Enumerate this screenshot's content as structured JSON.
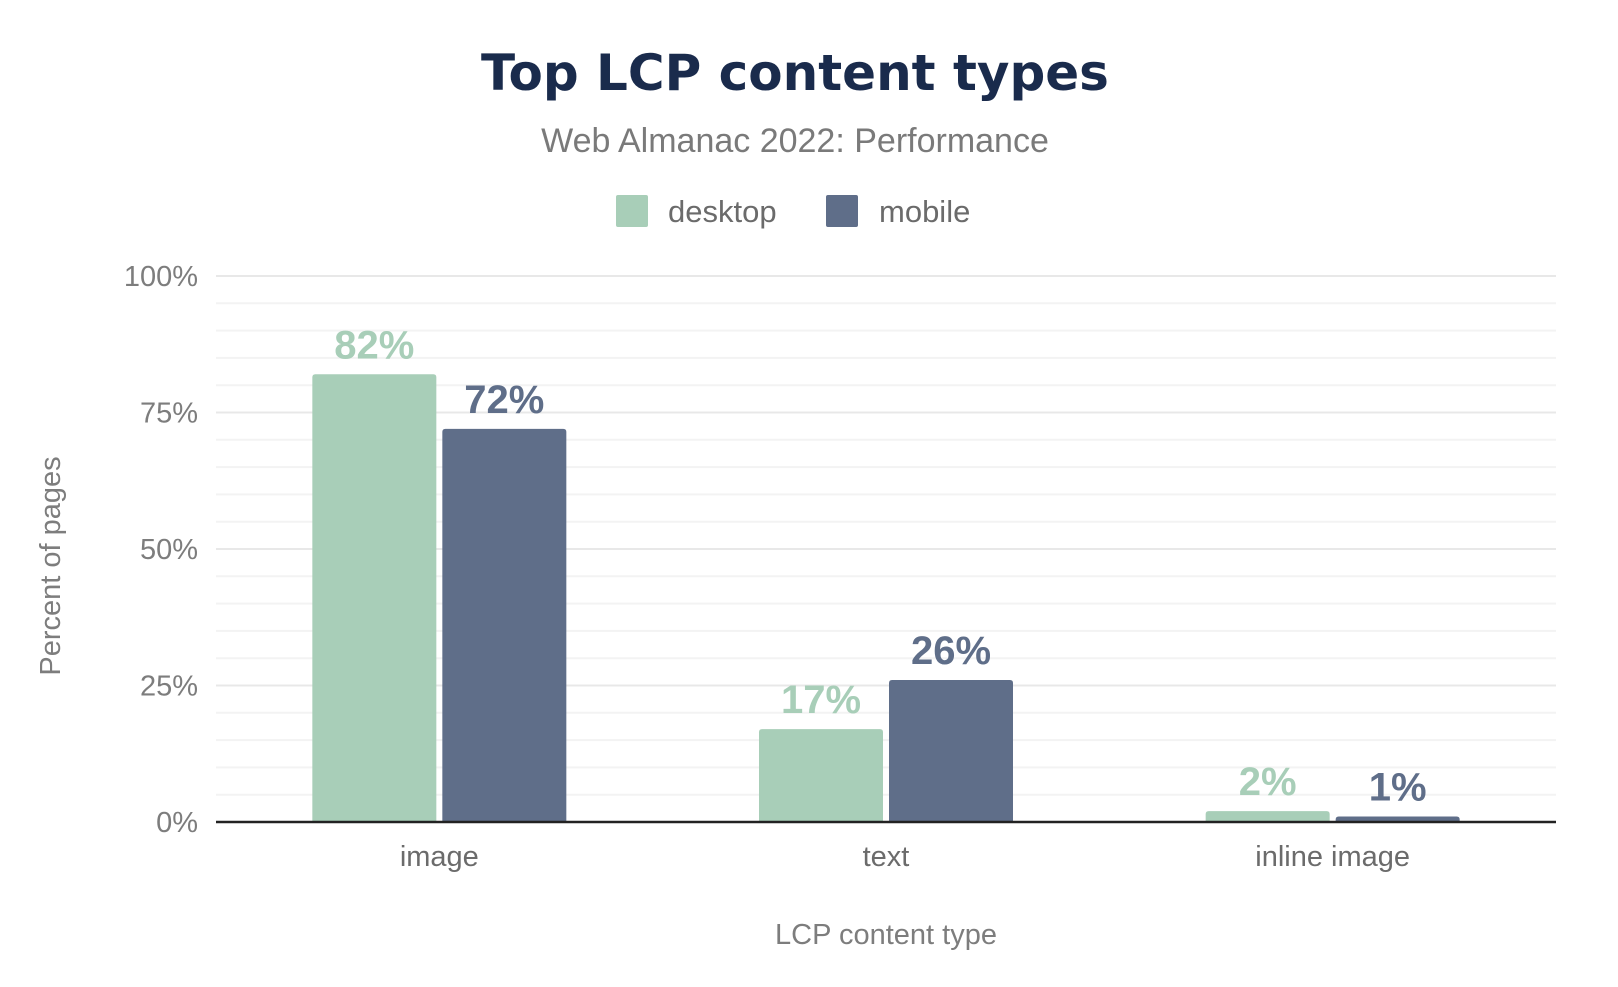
{
  "chart_data": {
    "type": "bar",
    "title": "Top LCP content types",
    "subtitle": "Web Almanac 2022: Performance",
    "xlabel": "LCP content type",
    "ylabel": "Percent of pages",
    "categories": [
      "image",
      "text",
      "inline image"
    ],
    "series": [
      {
        "name": "desktop",
        "color": "#a8ceb8",
        "values": [
          82,
          17,
          2
        ],
        "labels": [
          "82%",
          "17%",
          "2%"
        ]
      },
      {
        "name": "mobile",
        "color": "#5f6e89",
        "values": [
          72,
          26,
          1
        ],
        "labels": [
          "72%",
          "26%",
          "1%"
        ]
      }
    ],
    "ylim": [
      0,
      100
    ],
    "yticks": [
      {
        "value": 0,
        "label": "0%"
      },
      {
        "value": 25,
        "label": "25%"
      },
      {
        "value": 50,
        "label": "50%"
      },
      {
        "value": 75,
        "label": "75%"
      },
      {
        "value": 100,
        "label": "100%"
      }
    ],
    "grid": true,
    "legend_position": "top-center"
  }
}
